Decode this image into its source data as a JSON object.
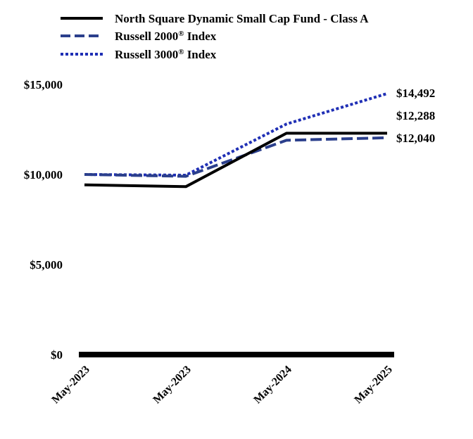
{
  "chart_data": {
    "type": "line",
    "categories": [
      "May-2023",
      "May-2023",
      "May-2024",
      "May-2025"
    ],
    "series": [
      {
        "name": "North Square Dynamic Small Cap Fund - Class A",
        "values": [
          9425,
          9325,
          12288,
          12288
        ],
        "color": "#000000",
        "dash": "solid",
        "end_label": "$12,288"
      },
      {
        "name": "Russell 2000® Index",
        "values": [
          10000,
          9900,
          11900,
          12040
        ],
        "color": "#2b3f8c",
        "dash": "dashed",
        "end_label": "$12,040"
      },
      {
        "name": "Russell 3000® Index",
        "values": [
          10000,
          9960,
          12800,
          14492
        ],
        "color": "#1f2fb5",
        "dash": "dotted",
        "end_label": "$14,492"
      }
    ],
    "legend": [
      {
        "prefix": "North Square Dynamic Small Cap Fund - Class A",
        "sup": "",
        "suffix": ""
      },
      {
        "prefix": "Russell 2000",
        "sup": "®",
        "suffix": " Index"
      },
      {
        "prefix": "Russell 3000",
        "sup": "®",
        "suffix": " Index"
      }
    ],
    "ytick_values": [
      0,
      5000,
      10000,
      15000
    ],
    "ytick_labels": [
      "$0",
      "$5,000",
      "$10,000",
      "$15,000"
    ],
    "ylim": [
      0,
      15000
    ],
    "legend_position": "top",
    "grid": false
  }
}
